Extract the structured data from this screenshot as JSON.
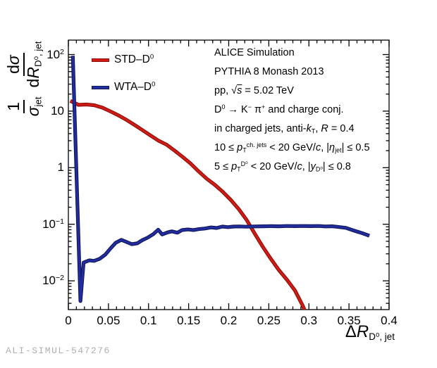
{
  "page": {
    "watermark": "ALI-SIMUL-547276"
  },
  "legend": {
    "items": [
      {
        "label": "STD–D^{0}",
        "series_index": 0
      },
      {
        "label": "WTA–D^{0}",
        "series_index": 1
      }
    ]
  },
  "annotations": [
    "ALICE Simulation",
    "PYTHIA 8 Monash 2013",
    "pp, √~*s*~ = 5.02 TeV",
    "D^{0} → K^{−} π^{+} and charge conj.",
    "in charged jets, anti-*k*_{T}, *R* = 0.4",
    "10 ≤ *p*_{T}^{ch. jets} < 20 GeV/*c*, |*η*_{jet}| ≤ 0.5",
    "5 ≤ *p*_{T}^{D⁰} < 20 GeV/*c*, |*y*_{D⁰}| ≤ 0.8"
  ],
  "axis_titles": {
    "x": "Δ*R*_{D⁰, jet}",
    "y_num1": "1",
    "y_den1": "*σ*_{jet}",
    "y_num2": "d*σ*",
    "y_den2": "d*R*_{D⁰, jet}"
  },
  "chart_data": {
    "type": "line",
    "title": "",
    "xlabel": "ΔR_{D⁰, jet}",
    "ylabel": "(1/σ_jet) dσ/dR_{D⁰, jet}",
    "xscale": "linear",
    "yscale": "log",
    "xlim": [
      0,
      0.4
    ],
    "ylim": [
      0.0031,
      180
    ],
    "grid": false,
    "legend_position": "inside-top-left",
    "x_major_ticks": [
      0,
      0.05,
      0.1,
      0.15,
      0.2,
      0.25,
      0.3,
      0.35,
      0.4
    ],
    "x_tick_labels": [
      "0",
      "0.05",
      "0.1",
      "0.15",
      "0.2",
      "0.25",
      "0.3",
      "0.35",
      "0.4"
    ],
    "x_minor_step": 0.01,
    "y_major_ticks": [
      100,
      10,
      1,
      0.1,
      0.01
    ],
    "y_tick_labels": [
      "10^{2}",
      "10",
      "1",
      "10^{−1}",
      "10^{−2}"
    ],
    "series": [
      {
        "name": "STD–D⁰",
        "color": "#d01c16",
        "edge_color": "#930f0b",
        "points": [
          [
            0.0025,
            15.2
          ],
          [
            0.0125,
            12.9
          ],
          [
            0.0225,
            13.1
          ],
          [
            0.0325,
            12.7
          ],
          [
            0.0425,
            11.5
          ],
          [
            0.0525,
            9.9
          ],
          [
            0.0625,
            8.4
          ],
          [
            0.0725,
            7.0
          ],
          [
            0.0825,
            5.7
          ],
          [
            0.0925,
            4.6
          ],
          [
            0.1025,
            3.7
          ],
          [
            0.1125,
            3.0
          ],
          [
            0.1225,
            2.55
          ],
          [
            0.1325,
            2.0
          ],
          [
            0.1425,
            1.55
          ],
          [
            0.1525,
            1.18
          ],
          [
            0.1625,
            0.86
          ],
          [
            0.1725,
            0.64
          ],
          [
            0.1825,
            0.5
          ],
          [
            0.1925,
            0.375
          ],
          [
            0.2025,
            0.27
          ],
          [
            0.2125,
            0.185
          ],
          [
            0.2225,
            0.118
          ],
          [
            0.2325,
            0.068
          ],
          [
            0.2425,
            0.04
          ],
          [
            0.2525,
            0.0245
          ],
          [
            0.2625,
            0.0155
          ],
          [
            0.2725,
            0.0105
          ],
          [
            0.2825,
            0.0068
          ],
          [
            0.2925,
            0.0036
          ],
          [
            0.2965,
            0.0026
          ]
        ]
      },
      {
        "name": "WTA–D⁰",
        "color": "#222da0",
        "edge_color": "#12175e",
        "points": [
          [
            0.0055,
            95
          ],
          [
            0.015,
            0.0044
          ],
          [
            0.019,
            0.021
          ],
          [
            0.026,
            0.023
          ],
          [
            0.032,
            0.0225
          ],
          [
            0.039,
            0.0245
          ],
          [
            0.046,
            0.029
          ],
          [
            0.053,
            0.038
          ],
          [
            0.059,
            0.047
          ],
          [
            0.066,
            0.053
          ],
          [
            0.072,
            0.049
          ],
          [
            0.079,
            0.0445
          ],
          [
            0.086,
            0.046
          ],
          [
            0.092,
            0.052
          ],
          [
            0.099,
            0.058
          ],
          [
            0.106,
            0.067
          ],
          [
            0.112,
            0.08
          ],
          [
            0.117,
            0.066
          ],
          [
            0.124,
            0.072
          ],
          [
            0.129,
            0.075
          ],
          [
            0.136,
            0.071
          ],
          [
            0.142,
            0.079
          ],
          [
            0.149,
            0.081
          ],
          [
            0.156,
            0.079
          ],
          [
            0.163,
            0.082
          ],
          [
            0.17,
            0.084
          ],
          [
            0.178,
            0.088
          ],
          [
            0.185,
            0.086
          ],
          [
            0.192,
            0.091
          ],
          [
            0.199,
            0.089
          ],
          [
            0.206,
            0.091
          ],
          [
            0.213,
            0.0915
          ],
          [
            0.222,
            0.0905
          ],
          [
            0.2325,
            0.0915
          ],
          [
            0.2425,
            0.092
          ],
          [
            0.2525,
            0.0925
          ],
          [
            0.2625,
            0.092
          ],
          [
            0.2725,
            0.093
          ],
          [
            0.2825,
            0.0925
          ],
          [
            0.2925,
            0.093
          ],
          [
            0.3025,
            0.0925
          ],
          [
            0.3125,
            0.093
          ],
          [
            0.32,
            0.0915
          ],
          [
            0.329,
            0.092
          ],
          [
            0.336,
            0.09
          ],
          [
            0.346,
            0.0865
          ],
          [
            0.356,
            0.0775
          ],
          [
            0.366,
            0.07
          ],
          [
            0.3755,
            0.0625
          ]
        ]
      }
    ]
  }
}
